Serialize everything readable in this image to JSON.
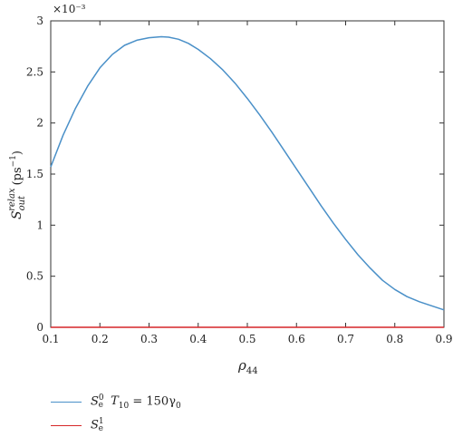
{
  "chart_data": {
    "type": "line",
    "title": "",
    "xlabel": "ρ44",
    "ylabel": "S_out^relax (ps^-1)",
    "y_multiplier": "×10⁻³",
    "xlim": [
      0.1,
      0.9
    ],
    "ylim": [
      0,
      3
    ],
    "x_ticks": [
      0.1,
      0.2,
      0.3,
      0.4,
      0.5,
      0.6,
      0.7,
      0.8,
      0.9
    ],
    "y_ticks": [
      0,
      0.5,
      1,
      1.5,
      2,
      2.5,
      3
    ],
    "x_tick_labels": [
      "0.1",
      "0.2",
      "0.3",
      "0.4",
      "0.5",
      "0.6",
      "0.7",
      "0.8",
      "0.9"
    ],
    "y_tick_labels": [
      "0",
      "0.5",
      "1",
      "1.5",
      "2",
      "2.5",
      "3"
    ],
    "grid": false,
    "legend_placement": "bottom-left, below axes",
    "series": [
      {
        "name": "S_e^0 T_10 = 150γ_0",
        "color": "#4a90c8",
        "x": [
          0.1,
          0.125,
          0.15,
          0.175,
          0.2,
          0.225,
          0.25,
          0.275,
          0.3,
          0.325,
          0.34,
          0.36,
          0.38,
          0.4,
          0.425,
          0.45,
          0.475,
          0.5,
          0.525,
          0.55,
          0.575,
          0.6,
          0.625,
          0.65,
          0.675,
          0.7,
          0.725,
          0.75,
          0.775,
          0.8,
          0.825,
          0.85,
          0.875,
          0.9
        ],
        "y": [
          1.57,
          1.88,
          2.14,
          2.36,
          2.54,
          2.67,
          2.76,
          2.81,
          2.835,
          2.845,
          2.84,
          2.82,
          2.78,
          2.72,
          2.63,
          2.52,
          2.39,
          2.24,
          2.08,
          1.91,
          1.73,
          1.55,
          1.37,
          1.19,
          1.02,
          0.86,
          0.71,
          0.58,
          0.46,
          0.37,
          0.3,
          0.25,
          0.21,
          0.17
        ]
      },
      {
        "name": "S_e^1",
        "color": "#d62728",
        "x": [
          0.1,
          0.9
        ],
        "y": [
          0,
          0
        ]
      }
    ]
  },
  "legend": {
    "series0": {
      "base": "S",
      "sub": "e",
      "sup": "0",
      "rest_T": "T",
      "rest_T_sub": "10",
      "rest_eq": " = 150γ",
      "rest_gamma_sub": "0"
    },
    "series1": {
      "base": "S",
      "sub": "e",
      "sup": "1"
    }
  }
}
